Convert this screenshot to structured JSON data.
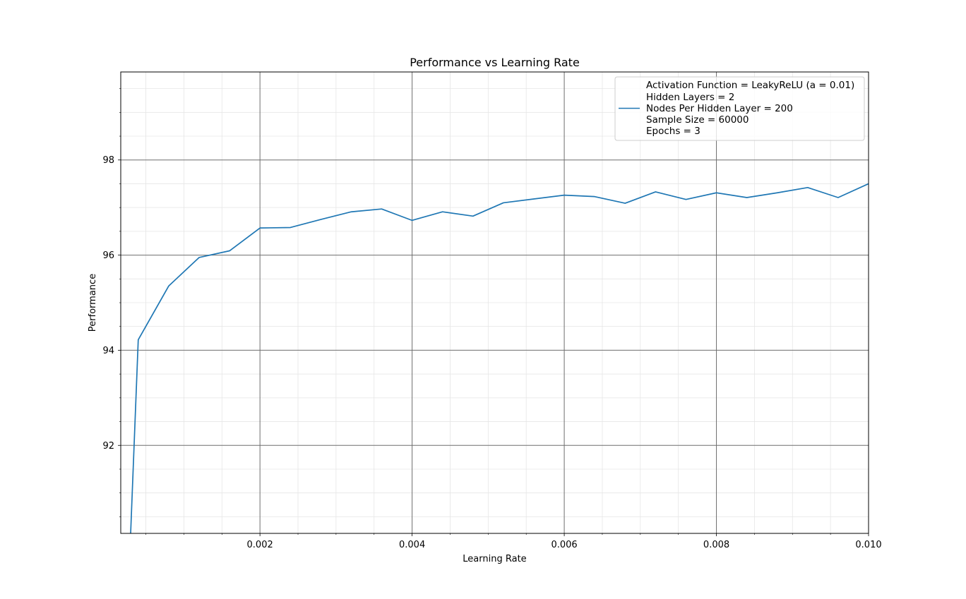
{
  "chart_data": {
    "type": "line",
    "title": "Performance vs Learning Rate",
    "xlabel": "Learning Rate",
    "ylabel": "Performance",
    "xlim": [
      0.00017,
      0.01
    ],
    "ylim": [
      90.15,
      99.85
    ],
    "x_ticks": [
      {
        "value": 0.002,
        "label": "0.002"
      },
      {
        "value": 0.004,
        "label": "0.004"
      },
      {
        "value": 0.006,
        "label": "0.006"
      },
      {
        "value": 0.008,
        "label": "0.008"
      },
      {
        "value": 0.01,
        "label": "0.010"
      }
    ],
    "y_ticks": [
      {
        "value": 92,
        "label": "92"
      },
      {
        "value": 94,
        "label": "94"
      },
      {
        "value": 96,
        "label": "96"
      },
      {
        "value": 98,
        "label": "98"
      }
    ],
    "grid": {
      "major": true,
      "minor": true
    },
    "legend": {
      "placement": "top-right",
      "lines": [
        "Activation Function = LeakyReLU (a = 0.01)",
        "Hidden Layers = 2",
        "Nodes Per Hidden Layer = 200",
        "Sample Size = 60000",
        "Epochs = 3"
      ]
    },
    "series": [
      {
        "color": "#1f77b4",
        "x": [
          0.00025,
          0.0003,
          0.0004,
          0.0008,
          0.0012,
          0.0016,
          0.002,
          0.0024,
          0.0028,
          0.0032,
          0.0036,
          0.004,
          0.0044,
          0.0048,
          0.0052,
          0.0056,
          0.006,
          0.0064,
          0.0068,
          0.0072,
          0.0076,
          0.008,
          0.0084,
          0.0088,
          0.0092,
          0.0096,
          0.01
        ],
        "y": [
          89.5,
          90.15,
          94.22,
          95.35,
          95.95,
          96.09,
          96.57,
          96.58,
          96.75,
          96.91,
          96.97,
          96.73,
          96.91,
          96.82,
          97.1,
          97.18,
          97.26,
          97.23,
          97.09,
          97.33,
          97.17,
          97.31,
          97.21,
          97.31,
          97.42,
          97.21,
          97.5
        ]
      }
    ]
  }
}
